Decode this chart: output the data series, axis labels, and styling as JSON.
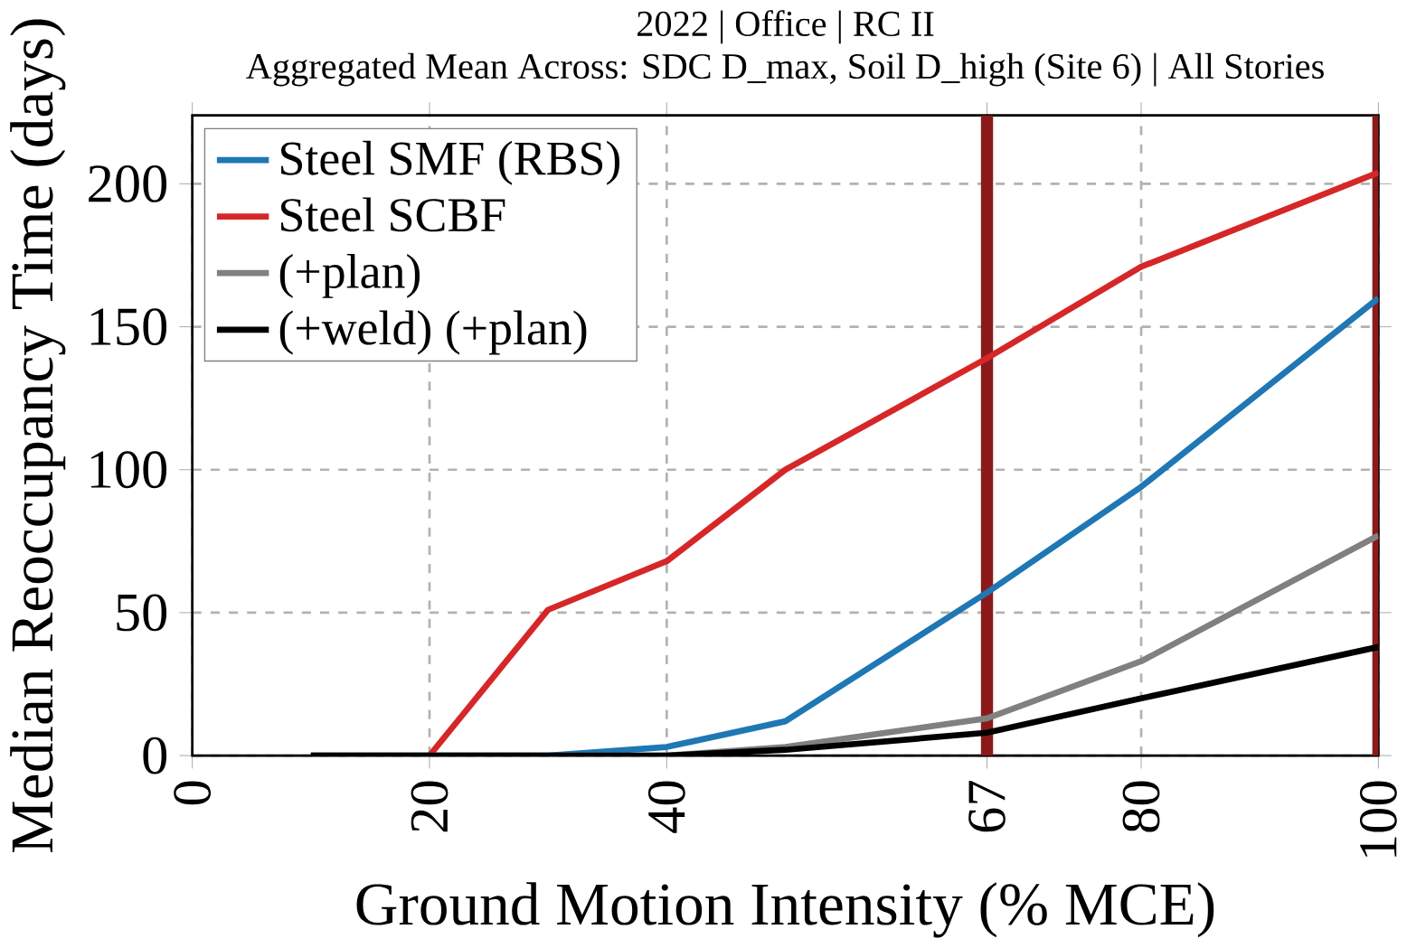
{
  "chart_data": {
    "type": "line",
    "title": "2022 | Office | RC II",
    "subtitle": "Aggregated Mean Across: SDC D_max, Soil D_high (Site 6) | All Stories",
    "xlabel": "Ground Motion Intensity (% MCE)",
    "ylabel": "Median Reoccupancy Time (days)",
    "x": [
      10,
      20,
      30,
      40,
      50,
      67,
      80,
      100
    ],
    "series": [
      {
        "name": "Steel SMF (RBS)",
        "color": "#1f77b4",
        "values": [
          0,
          0,
          0,
          3,
          12,
          57,
          94,
          160
        ]
      },
      {
        "name": "Steel SCBF",
        "color": "#d62728",
        "x": [
          20,
          30,
          40,
          50,
          67,
          80,
          100
        ],
        "values": [
          0,
          51,
          68,
          100,
          139,
          171,
          204
        ]
      },
      {
        "name": "(+plan)",
        "color": "#808080",
        "values": [
          0,
          0,
          0,
          0,
          3,
          13,
          33,
          77
        ]
      },
      {
        "name": "(+weld)  (+plan)",
        "color": "#000000",
        "values": [
          0,
          0,
          0,
          0,
          2,
          8,
          20,
          38
        ]
      }
    ],
    "xlim": [
      0,
      100
    ],
    "xticks": [
      0,
      20,
      40,
      67,
      80,
      100
    ],
    "ylim": [
      0,
      224
    ],
    "yticks": [
      0,
      50,
      100,
      150,
      200
    ],
    "grid": true,
    "legend": "top left",
    "line_style": "solid",
    "marker": "none",
    "ref_lines": [
      {
        "axis": "x",
        "value": 67,
        "color": "#8b1a1a"
      },
      {
        "axis": "x",
        "value": 100,
        "color": "#8b1a1a"
      }
    ]
  }
}
